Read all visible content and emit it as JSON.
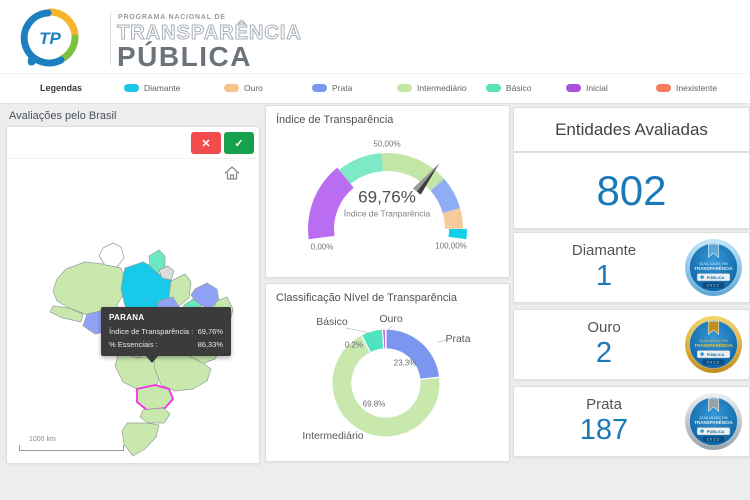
{
  "header": {
    "logo_monogram": "TP",
    "program_line1": "PROGRAMA NACIONAL DE",
    "program_line2": "TRANSPARÊNCIA",
    "program_line3": "PÚBLICA"
  },
  "legend": {
    "title": "Legendas",
    "items": [
      {
        "label": "Diamante",
        "color": "#1cc5e6"
      },
      {
        "label": "Ouro",
        "color": "#f6c28e"
      },
      {
        "label": "Prata",
        "color": "#7b96ee"
      },
      {
        "label": "Intermediário",
        "color": "#c6e6a6"
      },
      {
        "label": "Básico",
        "color": "#57e2b1"
      },
      {
        "label": "Inicial",
        "color": "#a94fe0"
      },
      {
        "label": "Inexistente",
        "color": "#f87a5e"
      }
    ]
  },
  "map_panel": {
    "title": "Avaliações pelo Brasil",
    "scale_label": "1000 km",
    "toolbar": {
      "reject_icon": "✕",
      "accept_icon": "✓"
    },
    "colors": {
      "intermediario": "#c9e8ad",
      "diamante": "#19c9ea",
      "basico": "#6ce8c2",
      "prata": "#8fa2f5",
      "none": "#ffffff",
      "unavailable": "#dcdcdc"
    },
    "highlight_color": "#f72fe2",
    "tooltip": {
      "state": "PARANA",
      "rows": [
        {
          "label": "Índice de Transparência :",
          "value": "69,76%"
        },
        {
          "label": "% Essenciais :",
          "value": "86,33%"
        }
      ]
    }
  },
  "gauge_panel": {
    "title": "Índice de Transparência"
  },
  "donut_panel": {
    "title": "Classificação Nível de Transparência"
  },
  "kpi_panel": {
    "title": "Entidades Avaliadas",
    "total": "802",
    "cards": [
      {
        "label": "Diamante",
        "value": "1",
        "badge": "diamante"
      },
      {
        "label": "Ouro",
        "value": "2",
        "badge": "ouro"
      },
      {
        "label": "Prata",
        "value": "187",
        "badge": "prata"
      }
    ]
  },
  "badge": {
    "text_top": "QUALIDADE EM",
    "text_main": "TRANSPARÊNCIA",
    "banner": "PÚBLICA",
    "year": "2022",
    "styles": {
      "diamante": {
        "rim1": "#c2e7f8",
        "rim2": "#5ea8d8",
        "text": "#d9effc"
      },
      "ouro": {
        "rim1": "#f4d66e",
        "rim2": "#c28d1b",
        "text": "#f5c63e"
      },
      "prata": {
        "rim1": "#eef0f2",
        "rim2": "#98a2ab",
        "text": "#e9eef3"
      }
    }
  },
  "chart_data": [
    {
      "type": "gauge",
      "title": "Índice de Transparência",
      "value": 69.76,
      "value_label": "69,76%",
      "center_label": "Índice de Tranparência",
      "min": 0,
      "max": 100,
      "axis_labels": [
        "0,00%",
        "50,00%",
        "100,00%"
      ],
      "segments": [
        {
          "name": "Inicial",
          "from": 0,
          "to": 30,
          "color": "#bb6df2"
        },
        {
          "name": "Básico",
          "from": 30,
          "to": 48,
          "color": "#7de9c6"
        },
        {
          "name": "Intermediário",
          "from": 48,
          "to": 75,
          "color": "#c3e6a6"
        },
        {
          "name": "Prata",
          "from": 75,
          "to": 88,
          "color": "#8fadf4"
        },
        {
          "name": "Ouro",
          "from": 88,
          "to": 96,
          "color": "#f7ca9b"
        },
        {
          "name": "Diamante",
          "from": 96,
          "to": 100,
          "color": "#12cfe9"
        }
      ]
    },
    {
      "type": "pie",
      "title": "Classificação Nível de Transparência",
      "slices": [
        {
          "name": "Prata",
          "value": 23.3,
          "label": "23.3%",
          "color": "#7b96ee"
        },
        {
          "name": "Intermediário",
          "value": 69.8,
          "label": "69.8%",
          "color": "#c8e8ae"
        },
        {
          "name": "Básico",
          "value": 6.5,
          "label": "",
          "color": "#4fe3c0"
        },
        {
          "name": "Ouro",
          "value": 0.2,
          "label": "0.2%",
          "color": "#c94fe8"
        }
      ],
      "legend_position": "outside-labels"
    },
    {
      "type": "map",
      "title": "Avaliações pelo Brasil",
      "highlighted_state": {
        "name": "PARANA",
        "indice_transparencia": "69,76%",
        "essenciais": "86,33%"
      }
    }
  ]
}
